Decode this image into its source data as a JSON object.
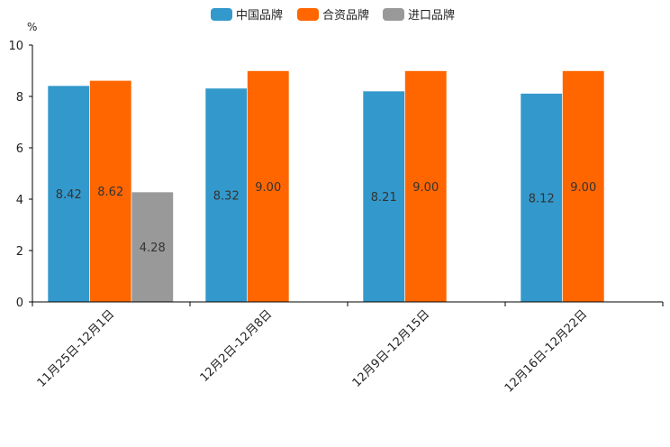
{
  "chart_data": {
    "type": "bar",
    "title": "",
    "xlabel": "",
    "ylabel": "%",
    "ylim": [
      0,
      10
    ],
    "yticks": [
      0,
      2,
      4,
      6,
      8,
      10
    ],
    "grid": false,
    "legend_position": "top-center",
    "categories": [
      "11月25日-12月1日",
      "12月2日-12月8日",
      "12月9日-12月15日",
      "12月16日-12月22日"
    ],
    "series": [
      {
        "name": "中国品牌",
        "color": "#3399cc",
        "values": [
          8.42,
          8.32,
          8.21,
          8.12
        ]
      },
      {
        "name": "合资品牌",
        "color": "#ff6600",
        "values": [
          8.62,
          9.0,
          9.0,
          9.0
        ]
      },
      {
        "name": "进口品牌",
        "color": "#999999",
        "values": [
          4.28,
          null,
          null,
          null
        ]
      }
    ],
    "data_labels": [
      [
        "8.42",
        "8.32",
        "8.21",
        "8.12"
      ],
      [
        "8.62",
        "9.00",
        "9.00",
        "9.00"
      ],
      [
        "4.28",
        "",
        "",
        ""
      ]
    ]
  }
}
